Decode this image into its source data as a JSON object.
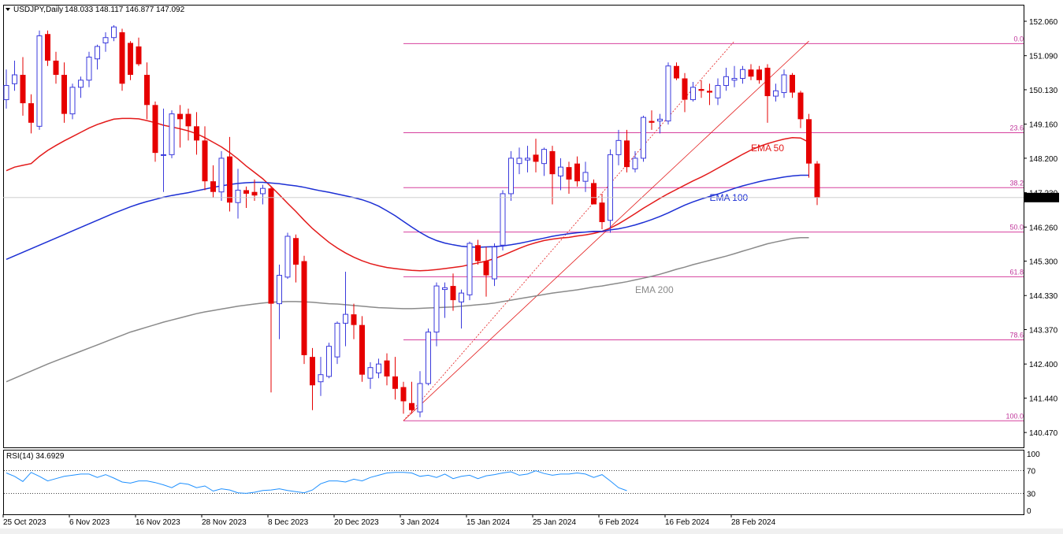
{
  "window": {
    "header": "USDJPY,Daily",
    "ohlc": "148.033 148.117 146.877 147.092"
  },
  "rsi": {
    "label": "RSI(14) 34.6929",
    "ticks": [
      "100",
      "70",
      "30",
      "0"
    ],
    "levels": [
      70,
      30
    ],
    "values": [
      66,
      60,
      51,
      67,
      60,
      52,
      56,
      60,
      62,
      64,
      64,
      58,
      63,
      57,
      50,
      48,
      52,
      52,
      49,
      45,
      40,
      48,
      46,
      40,
      43,
      34,
      38,
      36,
      31,
      30,
      32,
      35,
      36,
      38,
      35,
      33,
      31,
      36,
      47,
      52,
      52,
      50,
      55,
      52,
      58,
      62,
      66,
      67,
      67,
      66,
      60,
      62,
      58,
      64,
      56,
      60,
      62,
      56,
      61,
      63,
      66,
      68,
      62,
      64,
      70,
      65,
      62,
      64,
      64,
      66,
      64,
      58,
      63,
      52,
      40,
      34.7
    ]
  },
  "price_axis": {
    "ticks": [
      "152.060",
      "151.090",
      "150.130",
      "149.160",
      "148.200",
      "147.230",
      "146.260",
      "145.300",
      "144.330",
      "143.370",
      "142.400",
      "141.440",
      "140.470"
    ],
    "current": "147.092"
  },
  "time_axis": {
    "labels": [
      "25 Oct 2023",
      "6 Nov 2023",
      "16 Nov 2023",
      "28 Nov 2023",
      "8 Dec 2023",
      "20 Dec 2023",
      "3 Jan 2024",
      "15 Jan 2024",
      "25 Jan 2024",
      "6 Feb 2024",
      "16 Feb 2024",
      "28 Feb 2024"
    ]
  },
  "colors": {
    "bull": "#3a3adc",
    "bear": "#e60000",
    "ema50": "#e31a1a",
    "ema100": "#1c2fd4",
    "ema200": "#8a8a8a",
    "fib": "#d6409e"
  },
  "chart_data": {
    "type": "candlestick",
    "symbol": "USDJPY",
    "timeframe": "Daily",
    "ylim": [
      140.0,
      152.5
    ],
    "candles": [
      {
        "o": 149.85,
        "h": 150.7,
        "l": 149.6,
        "c": 150.25
      },
      {
        "o": 150.3,
        "h": 150.95,
        "l": 150.1,
        "c": 150.55
      },
      {
        "o": 150.55,
        "h": 151.05,
        "l": 149.4,
        "c": 149.75
      },
      {
        "o": 149.75,
        "h": 150.0,
        "l": 148.9,
        "c": 149.2
      },
      {
        "o": 149.1,
        "h": 151.8,
        "l": 149.0,
        "c": 151.65
      },
      {
        "o": 151.7,
        "h": 151.8,
        "l": 150.8,
        "c": 150.95
      },
      {
        "o": 150.95,
        "h": 151.2,
        "l": 150.3,
        "c": 150.55
      },
      {
        "o": 150.55,
        "h": 150.9,
        "l": 149.2,
        "c": 149.45
      },
      {
        "o": 149.45,
        "h": 150.3,
        "l": 149.3,
        "c": 150.2
      },
      {
        "o": 150.2,
        "h": 150.5,
        "l": 149.9,
        "c": 150.4
      },
      {
        "o": 150.4,
        "h": 151.2,
        "l": 150.2,
        "c": 151.05
      },
      {
        "o": 151.0,
        "h": 151.4,
        "l": 150.7,
        "c": 151.35
      },
      {
        "o": 151.45,
        "h": 151.75,
        "l": 151.2,
        "c": 151.6
      },
      {
        "o": 151.6,
        "h": 151.95,
        "l": 151.5,
        "c": 151.9
      },
      {
        "o": 151.75,
        "h": 151.85,
        "l": 150.1,
        "c": 150.3
      },
      {
        "o": 151.45,
        "h": 151.5,
        "l": 150.4,
        "c": 150.55
      },
      {
        "o": 151.35,
        "h": 151.6,
        "l": 150.8,
        "c": 150.85
      },
      {
        "o": 150.55,
        "h": 150.9,
        "l": 149.3,
        "c": 149.7
      },
      {
        "o": 149.7,
        "h": 149.8,
        "l": 148.1,
        "c": 148.35
      },
      {
        "o": 148.3,
        "h": 149.6,
        "l": 147.25,
        "c": 148.3
      },
      {
        "o": 148.3,
        "h": 149.55,
        "l": 148.2,
        "c": 149.45
      },
      {
        "o": 149.45,
        "h": 149.7,
        "l": 148.5,
        "c": 149.3
      },
      {
        "o": 149.45,
        "h": 149.6,
        "l": 148.7,
        "c": 149.1
      },
      {
        "o": 149.1,
        "h": 149.5,
        "l": 148.3,
        "c": 148.7
      },
      {
        "o": 148.7,
        "h": 149.1,
        "l": 147.3,
        "c": 147.55
      },
      {
        "o": 147.55,
        "h": 148.0,
        "l": 147.1,
        "c": 147.25
      },
      {
        "o": 147.25,
        "h": 148.4,
        "l": 147.0,
        "c": 148.2
      },
      {
        "o": 148.25,
        "h": 148.8,
        "l": 146.7,
        "c": 146.95
      },
      {
        "o": 146.95,
        "h": 147.9,
        "l": 146.5,
        "c": 147.3
      },
      {
        "o": 147.3,
        "h": 147.4,
        "l": 146.8,
        "c": 147.2
      },
      {
        "o": 147.25,
        "h": 147.6,
        "l": 147.0,
        "c": 147.15
      },
      {
        "o": 147.2,
        "h": 147.45,
        "l": 146.9,
        "c": 147.35
      },
      {
        "o": 147.35,
        "h": 147.4,
        "l": 141.6,
        "c": 144.1
      },
      {
        "o": 144.1,
        "h": 145.2,
        "l": 143.1,
        "c": 144.9
      },
      {
        "o": 144.85,
        "h": 146.1,
        "l": 144.8,
        "c": 146.0
      },
      {
        "o": 145.95,
        "h": 146.05,
        "l": 144.7,
        "c": 145.2
      },
      {
        "o": 145.3,
        "h": 145.45,
        "l": 142.4,
        "c": 142.65
      },
      {
        "o": 142.6,
        "h": 142.85,
        "l": 141.1,
        "c": 141.8
      },
      {
        "o": 141.9,
        "h": 142.6,
        "l": 141.5,
        "c": 142.1
      },
      {
        "o": 142.05,
        "h": 143.0,
        "l": 142.0,
        "c": 142.9
      },
      {
        "o": 142.6,
        "h": 143.6,
        "l": 142.4,
        "c": 143.55
      },
      {
        "o": 143.55,
        "h": 145.0,
        "l": 142.9,
        "c": 143.8
      },
      {
        "o": 143.8,
        "h": 144.1,
        "l": 143.1,
        "c": 143.5
      },
      {
        "o": 143.5,
        "h": 143.75,
        "l": 141.9,
        "c": 142.1
      },
      {
        "o": 142.0,
        "h": 142.45,
        "l": 141.7,
        "c": 142.3
      },
      {
        "o": 142.15,
        "h": 142.55,
        "l": 142.0,
        "c": 142.4
      },
      {
        "o": 142.5,
        "h": 142.7,
        "l": 141.8,
        "c": 142.05
      },
      {
        "o": 142.05,
        "h": 142.6,
        "l": 141.4,
        "c": 141.7
      },
      {
        "o": 141.75,
        "h": 141.9,
        "l": 141.0,
        "c": 141.35
      },
      {
        "o": 141.3,
        "h": 141.9,
        "l": 141.0,
        "c": 141.1
      },
      {
        "o": 141.05,
        "h": 142.2,
        "l": 140.9,
        "c": 141.85
      },
      {
        "o": 141.85,
        "h": 143.4,
        "l": 141.8,
        "c": 143.3
      },
      {
        "o": 143.3,
        "h": 144.7,
        "l": 142.9,
        "c": 144.6
      },
      {
        "o": 144.5,
        "h": 144.7,
        "l": 143.7,
        "c": 144.55
      },
      {
        "o": 144.6,
        "h": 144.95,
        "l": 143.9,
        "c": 144.2
      },
      {
        "o": 144.15,
        "h": 144.5,
        "l": 143.4,
        "c": 144.4
      },
      {
        "o": 144.35,
        "h": 145.85,
        "l": 144.2,
        "c": 145.8
      },
      {
        "o": 145.75,
        "h": 145.9,
        "l": 145.2,
        "c": 145.3
      },
      {
        "o": 145.3,
        "h": 145.7,
        "l": 144.3,
        "c": 144.9
      },
      {
        "o": 144.8,
        "h": 145.8,
        "l": 144.6,
        "c": 145.7
      },
      {
        "o": 145.75,
        "h": 147.3,
        "l": 145.6,
        "c": 147.2
      },
      {
        "o": 147.2,
        "h": 148.4,
        "l": 147.0,
        "c": 148.2
      },
      {
        "o": 148.05,
        "h": 148.5,
        "l": 147.75,
        "c": 148.2
      },
      {
        "o": 148.15,
        "h": 148.55,
        "l": 147.8,
        "c": 148.2
      },
      {
        "o": 148.3,
        "h": 148.75,
        "l": 147.8,
        "c": 148.1
      },
      {
        "o": 148.05,
        "h": 148.5,
        "l": 147.7,
        "c": 148.45
      },
      {
        "o": 148.4,
        "h": 148.55,
        "l": 146.9,
        "c": 147.75
      },
      {
        "o": 147.7,
        "h": 148.2,
        "l": 147.3,
        "c": 147.95
      },
      {
        "o": 147.95,
        "h": 148.1,
        "l": 147.2,
        "c": 147.6
      },
      {
        "o": 148.05,
        "h": 148.25,
        "l": 147.4,
        "c": 147.55
      },
      {
        "o": 147.55,
        "h": 148.1,
        "l": 147.25,
        "c": 147.8
      },
      {
        "o": 147.5,
        "h": 147.6,
        "l": 146.9,
        "c": 146.9
      },
      {
        "o": 146.95,
        "h": 147.2,
        "l": 146.2,
        "c": 146.4
      },
      {
        "o": 146.45,
        "h": 148.45,
        "l": 146.1,
        "c": 148.3
      },
      {
        "o": 148.3,
        "h": 149.0,
        "l": 148.0,
        "c": 148.7
      },
      {
        "o": 148.7,
        "h": 149.0,
        "l": 147.8,
        "c": 147.95
      },
      {
        "o": 147.9,
        "h": 148.4,
        "l": 147.8,
        "c": 148.2
      },
      {
        "o": 148.2,
        "h": 149.4,
        "l": 148.1,
        "c": 149.35
      },
      {
        "o": 149.25,
        "h": 149.55,
        "l": 149.0,
        "c": 149.2
      },
      {
        "o": 149.25,
        "h": 149.45,
        "l": 148.9,
        "c": 149.3
      },
      {
        "o": 149.25,
        "h": 150.9,
        "l": 149.15,
        "c": 150.8
      },
      {
        "o": 150.8,
        "h": 150.9,
        "l": 150.4,
        "c": 150.45
      },
      {
        "o": 150.45,
        "h": 150.6,
        "l": 149.5,
        "c": 149.85
      },
      {
        "o": 149.85,
        "h": 150.35,
        "l": 149.8,
        "c": 150.2
      },
      {
        "o": 150.15,
        "h": 150.4,
        "l": 149.9,
        "c": 150.1
      },
      {
        "o": 150.1,
        "h": 150.3,
        "l": 149.7,
        "c": 150.05
      },
      {
        "o": 149.9,
        "h": 150.45,
        "l": 149.7,
        "c": 150.25
      },
      {
        "o": 150.25,
        "h": 150.75,
        "l": 150.1,
        "c": 150.5
      },
      {
        "o": 150.4,
        "h": 150.8,
        "l": 150.2,
        "c": 150.45
      },
      {
        "o": 150.45,
        "h": 150.8,
        "l": 150.3,
        "c": 150.7
      },
      {
        "o": 150.7,
        "h": 150.85,
        "l": 150.4,
        "c": 150.5
      },
      {
        "o": 150.7,
        "h": 150.8,
        "l": 150.3,
        "c": 150.4
      },
      {
        "o": 150.75,
        "h": 150.85,
        "l": 149.2,
        "c": 149.95
      },
      {
        "o": 149.95,
        "h": 150.3,
        "l": 149.8,
        "c": 150.1
      },
      {
        "o": 150.05,
        "h": 150.7,
        "l": 149.9,
        "c": 150.55
      },
      {
        "o": 150.55,
        "h": 150.6,
        "l": 149.9,
        "c": 150.05
      },
      {
        "o": 150.05,
        "h": 150.1,
        "l": 149.05,
        "c": 149.3
      },
      {
        "o": 149.3,
        "h": 149.45,
        "l": 147.65,
        "c": 148.05
      },
      {
        "o": 148.05,
        "h": 148.12,
        "l": 146.88,
        "c": 147.09
      }
    ],
    "ema": [
      {
        "name": "EMA 50",
        "values": [
          147.85,
          147.95,
          148.0,
          148.05,
          148.25,
          148.42,
          148.56,
          148.69,
          148.81,
          148.93,
          149.05,
          149.15,
          149.23,
          149.3,
          149.32,
          149.32,
          149.31,
          149.26,
          149.2,
          149.13,
          149.08,
          149.03,
          148.97,
          148.89,
          148.78,
          148.65,
          148.52,
          148.36,
          148.18,
          147.98,
          147.8,
          147.62,
          147.4,
          147.17,
          146.93,
          146.7,
          146.45,
          146.22,
          146.02,
          145.83,
          145.67,
          145.53,
          145.41,
          145.31,
          145.23,
          145.17,
          145.12,
          145.09,
          145.06,
          145.04,
          145.03,
          145.04,
          145.06,
          145.09,
          145.12,
          145.15,
          145.2,
          145.25,
          145.3,
          145.37,
          145.46,
          145.56,
          145.66,
          145.75,
          145.82,
          145.88,
          145.92,
          145.95,
          145.97,
          146.01,
          146.04,
          146.08,
          146.14,
          146.23,
          146.35,
          146.49,
          146.64,
          146.79,
          146.93,
          147.07,
          147.2,
          147.32,
          147.44,
          147.56,
          147.67,
          147.79,
          147.92,
          148.05,
          148.18,
          148.31,
          148.43,
          148.53,
          148.61,
          148.68,
          148.74,
          148.78,
          148.77,
          148.65
        ]
      },
      {
        "name": "EMA 100",
        "values": [
          145.35,
          145.45,
          145.55,
          145.65,
          145.75,
          145.85,
          145.95,
          146.05,
          146.15,
          146.25,
          146.35,
          146.45,
          146.55,
          146.65,
          146.74,
          146.83,
          146.91,
          146.98,
          147.04,
          147.1,
          147.15,
          147.19,
          147.23,
          147.28,
          147.33,
          147.38,
          147.42,
          147.46,
          147.49,
          147.51,
          147.52,
          147.52,
          147.5,
          147.48,
          147.45,
          147.42,
          147.38,
          147.33,
          147.28,
          147.24,
          147.19,
          147.14,
          147.09,
          147.03,
          146.95,
          146.85,
          146.72,
          146.58,
          146.42,
          146.26,
          146.11,
          145.98,
          145.88,
          145.81,
          145.76,
          145.72,
          145.7,
          145.69,
          145.7,
          145.71,
          145.73,
          145.76,
          145.8,
          145.85,
          145.9,
          145.95,
          146.0,
          146.04,
          146.07,
          146.1,
          146.12,
          146.14,
          146.14,
          146.18,
          146.21,
          146.26,
          146.32,
          146.39,
          146.47,
          146.56,
          146.66,
          146.77,
          146.88,
          146.97,
          147.05,
          147.12,
          147.19,
          147.27,
          147.35,
          147.42,
          147.48,
          147.54,
          147.59,
          147.63,
          147.67,
          147.7,
          147.72,
          147.72
        ]
      },
      {
        "name": "EMA 200",
        "values": [
          141.9,
          142.0,
          142.1,
          142.2,
          142.3,
          142.4,
          142.49,
          142.58,
          142.67,
          142.76,
          142.85,
          142.94,
          143.03,
          143.12,
          143.21,
          143.3,
          143.37,
          143.44,
          143.51,
          143.58,
          143.64,
          143.7,
          143.76,
          143.82,
          143.87,
          143.91,
          143.95,
          143.99,
          144.03,
          144.06,
          144.09,
          144.12,
          144.14,
          144.15,
          144.16,
          144.16,
          144.15,
          144.14,
          144.12,
          144.1,
          144.09,
          144.07,
          144.05,
          144.03,
          144.01,
          143.99,
          143.98,
          143.97,
          143.96,
          143.96,
          143.97,
          143.98,
          143.99,
          144.0,
          144.01,
          144.03,
          144.05,
          144.07,
          144.09,
          144.12,
          144.16,
          144.2,
          144.24,
          144.28,
          144.32,
          144.36,
          144.4,
          144.43,
          144.46,
          144.49,
          144.53,
          144.57,
          144.6,
          144.64,
          144.68,
          144.72,
          144.77,
          144.82,
          144.87,
          144.93,
          145.0,
          145.07,
          145.13,
          145.2,
          145.26,
          145.32,
          145.38,
          145.44,
          145.51,
          145.58,
          145.65,
          145.72,
          145.79,
          145.84,
          145.89,
          145.94,
          145.96,
          145.96
        ]
      }
    ],
    "fibonacci": {
      "high": 151.43,
      "low": 140.8,
      "levels": [
        {
          "label": "0.0",
          "price": 151.43
        },
        {
          "label": "23.6",
          "price": 148.92
        },
        {
          "label": "38.2",
          "price": 147.37
        },
        {
          "label": "50.0",
          "price": 146.12
        },
        {
          "label": "61.8",
          "price": 144.86
        },
        {
          "label": "78.6",
          "price": 143.08
        },
        {
          "label": "100.0",
          "price": 140.8
        }
      ]
    },
    "trendlines": [
      {
        "from_index": 48,
        "from_price": 140.8,
        "to_index": 97,
        "to_price": 151.5,
        "style": "solid"
      },
      {
        "from_index": 48,
        "from_price": 140.8,
        "to_index": 88,
        "to_price": 151.5,
        "style": "dotted"
      }
    ],
    "annotations": [
      {
        "text": "EMA 50",
        "index": 90,
        "price": 148.4,
        "color": "#e31a1a"
      },
      {
        "text": "EMA 100",
        "index": 85,
        "price": 147.0,
        "color": "#1c2fd4"
      },
      {
        "text": "EMA 200",
        "index": 76,
        "price": 144.4,
        "color": "#8a8a8a"
      }
    ]
  }
}
